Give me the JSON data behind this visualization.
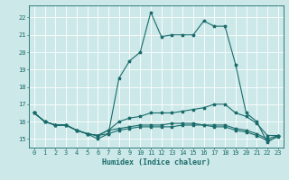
{
  "xlabel": "Humidex (Indice chaleur)",
  "xlim": [
    -0.5,
    23.5
  ],
  "ylim": [
    14.5,
    22.7
  ],
  "xticks": [
    0,
    1,
    2,
    3,
    4,
    5,
    6,
    7,
    8,
    9,
    10,
    11,
    12,
    13,
    14,
    15,
    16,
    17,
    18,
    19,
    20,
    21,
    22,
    23
  ],
  "yticks": [
    15,
    16,
    17,
    18,
    19,
    20,
    21,
    22
  ],
  "bg_color": "#cce8e8",
  "line_color": "#1a6b6b",
  "grid_color": "#ffffff",
  "lines": [
    [
      16.5,
      16.0,
      15.8,
      15.8,
      15.5,
      15.3,
      15.0,
      15.3,
      18.5,
      19.5,
      20.0,
      22.3,
      20.9,
      21.0,
      21.0,
      21.0,
      21.8,
      21.5,
      21.5,
      19.3,
      16.5,
      16.0,
      14.8,
      15.2
    ],
    [
      16.5,
      16.0,
      15.8,
      15.8,
      15.5,
      15.3,
      15.2,
      15.5,
      16.0,
      16.2,
      16.3,
      16.5,
      16.5,
      16.5,
      16.6,
      16.7,
      16.8,
      17.0,
      17.0,
      16.5,
      16.3,
      15.9,
      15.2,
      15.2
    ],
    [
      16.5,
      16.0,
      15.8,
      15.8,
      15.5,
      15.3,
      15.2,
      15.5,
      15.6,
      15.7,
      15.8,
      15.8,
      15.8,
      15.9,
      15.9,
      15.9,
      15.8,
      15.8,
      15.8,
      15.6,
      15.5,
      15.3,
      15.0,
      15.2
    ],
    [
      16.5,
      16.0,
      15.8,
      15.8,
      15.5,
      15.3,
      15.2,
      15.3,
      15.5,
      15.6,
      15.7,
      15.7,
      15.7,
      15.7,
      15.8,
      15.8,
      15.8,
      15.7,
      15.7,
      15.5,
      15.4,
      15.2,
      14.9,
      15.1
    ]
  ],
  "xlabel_fontsize": 6,
  "tick_fontsize": 5,
  "linewidth": 0.8,
  "markersize": 2.5
}
